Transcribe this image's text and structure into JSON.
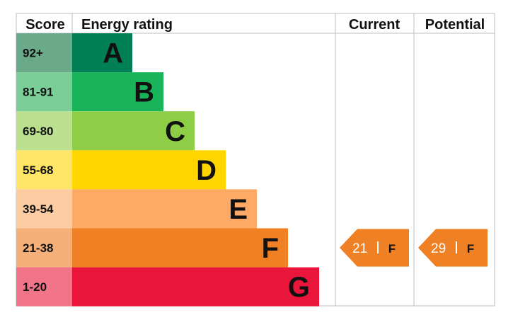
{
  "chart_data": {
    "type": "table",
    "headers": {
      "score": "Score",
      "rating": "Energy rating",
      "current": "Current",
      "potential": "Potential"
    },
    "bands": [
      {
        "letter": "A",
        "range": "92+",
        "color": "#008054",
        "score_color": "#6aa98a"
      },
      {
        "letter": "B",
        "range": "81-91",
        "color": "#19b459",
        "score_color": "#7bce98"
      },
      {
        "letter": "C",
        "range": "69-80",
        "color": "#8dce46",
        "score_color": "#bbe08f"
      },
      {
        "letter": "D",
        "range": "55-68",
        "color": "#ffd500",
        "score_color": "#ffe566"
      },
      {
        "letter": "E",
        "range": "39-54",
        "color": "#fcaa65",
        "score_color": "#fdcca3"
      },
      {
        "letter": "F",
        "range": "21-38",
        "color": "#ef8023",
        "score_color": "#f5b07a"
      },
      {
        "letter": "G",
        "range": "1-20",
        "color": "#e9153b",
        "score_color": "#f27489"
      }
    ],
    "current": {
      "value": 21,
      "band": "F",
      "color": "#ef8023"
    },
    "potential": {
      "value": 29,
      "band": "F",
      "color": "#ef8023"
    }
  }
}
